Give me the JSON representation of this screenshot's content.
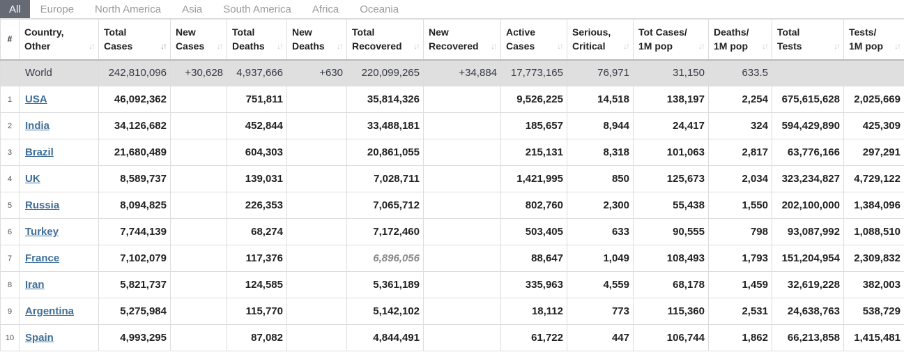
{
  "tabs": [
    "All",
    "Europe",
    "North America",
    "Asia",
    "South America",
    "Africa",
    "Oceania"
  ],
  "active_tab": "All",
  "header": {
    "num": "#",
    "country": [
      "Country,",
      "Other"
    ],
    "total_cases": [
      "Total",
      "Cases"
    ],
    "new_cases": [
      "New",
      "Cases"
    ],
    "total_deaths": [
      "Total",
      "Deaths"
    ],
    "new_deaths": [
      "New",
      "Deaths"
    ],
    "total_recovered": [
      "Total",
      "Recovered"
    ],
    "new_recovered": [
      "New",
      "Recovered"
    ],
    "active_cases": [
      "Active",
      "Cases"
    ],
    "serious": [
      "Serious,",
      "Critical"
    ],
    "cases_per_1m": [
      "Tot Cases/",
      "1M pop"
    ],
    "deaths_per_1m": [
      "Deaths/",
      "1M pop"
    ],
    "total_tests": [
      "Total",
      "Tests"
    ],
    "tests_per_1m": [
      "Tests/",
      "1M pop"
    ]
  },
  "world": {
    "country": "World",
    "total_cases": "242,810,096",
    "new_cases": "+30,628",
    "total_deaths": "4,937,666",
    "new_deaths": "+630",
    "total_recovered": "220,099,265",
    "new_recovered": "+34,884",
    "active_cases": "17,773,165",
    "serious": "76,971",
    "cases_per_1m": "31,150",
    "deaths_per_1m": "633.5",
    "total_tests": "",
    "tests_per_1m": ""
  },
  "rows": [
    {
      "idx": "1",
      "country": "USA",
      "total_cases": "46,092,362",
      "new_cases": "",
      "total_deaths": "751,811",
      "new_deaths": "",
      "total_recovered": "35,814,326",
      "new_recovered": "",
      "active_cases": "9,526,225",
      "serious": "14,518",
      "cases_per_1m": "138,197",
      "deaths_per_1m": "2,254",
      "total_tests": "675,615,628",
      "tests_per_1m": "2,025,669"
    },
    {
      "idx": "2",
      "country": "India",
      "total_cases": "34,126,682",
      "new_cases": "",
      "total_deaths": "452,844",
      "new_deaths": "",
      "total_recovered": "33,488,181",
      "new_recovered": "",
      "active_cases": "185,657",
      "serious": "8,944",
      "cases_per_1m": "24,417",
      "deaths_per_1m": "324",
      "total_tests": "594,429,890",
      "tests_per_1m": "425,309"
    },
    {
      "idx": "3",
      "country": "Brazil",
      "total_cases": "21,680,489",
      "new_cases": "",
      "total_deaths": "604,303",
      "new_deaths": "",
      "total_recovered": "20,861,055",
      "new_recovered": "",
      "active_cases": "215,131",
      "serious": "8,318",
      "cases_per_1m": "101,063",
      "deaths_per_1m": "2,817",
      "total_tests": "63,776,166",
      "tests_per_1m": "297,291"
    },
    {
      "idx": "4",
      "country": "UK",
      "total_cases": "8,589,737",
      "new_cases": "",
      "total_deaths": "139,031",
      "new_deaths": "",
      "total_recovered": "7,028,711",
      "new_recovered": "",
      "active_cases": "1,421,995",
      "serious": "850",
      "cases_per_1m": "125,673",
      "deaths_per_1m": "2,034",
      "total_tests": "323,234,827",
      "tests_per_1m": "4,729,122"
    },
    {
      "idx": "5",
      "country": "Russia",
      "total_cases": "8,094,825",
      "new_cases": "",
      "total_deaths": "226,353",
      "new_deaths": "",
      "total_recovered": "7,065,712",
      "new_recovered": "",
      "active_cases": "802,760",
      "serious": "2,300",
      "cases_per_1m": "55,438",
      "deaths_per_1m": "1,550",
      "total_tests": "202,100,000",
      "tests_per_1m": "1,384,096"
    },
    {
      "idx": "6",
      "country": "Turkey",
      "total_cases": "7,744,139",
      "new_cases": "",
      "total_deaths": "68,274",
      "new_deaths": "",
      "total_recovered": "7,172,460",
      "new_recovered": "",
      "active_cases": "503,405",
      "serious": "633",
      "cases_per_1m": "90,555",
      "deaths_per_1m": "798",
      "total_tests": "93,087,992",
      "tests_per_1m": "1,088,510"
    },
    {
      "idx": "7",
      "country": "France",
      "total_cases": "7,102,079",
      "new_cases": "",
      "total_deaths": "117,376",
      "new_deaths": "",
      "total_recovered": "6,896,056",
      "new_recovered": "",
      "active_cases": "88,647",
      "serious": "1,049",
      "cases_per_1m": "108,493",
      "deaths_per_1m": "1,793",
      "total_tests": "151,204,954",
      "tests_per_1m": "2,309,832"
    },
    {
      "idx": "8",
      "country": "Iran",
      "total_cases": "5,821,737",
      "new_cases": "",
      "total_deaths": "124,585",
      "new_deaths": "",
      "total_recovered": "5,361,189",
      "new_recovered": "",
      "active_cases": "335,963",
      "serious": "4,559",
      "cases_per_1m": "68,178",
      "deaths_per_1m": "1,459",
      "total_tests": "32,619,228",
      "tests_per_1m": "382,003"
    },
    {
      "idx": "9",
      "country": "Argentina",
      "total_cases": "5,275,984",
      "new_cases": "",
      "total_deaths": "115,770",
      "new_deaths": "",
      "total_recovered": "5,142,102",
      "new_recovered": "",
      "active_cases": "18,112",
      "serious": "773",
      "cases_per_1m": "115,360",
      "deaths_per_1m": "2,531",
      "total_tests": "24,638,763",
      "tests_per_1m": "538,729"
    },
    {
      "idx": "10",
      "country": "Spain",
      "total_cases": "4,993,295",
      "new_cases": "",
      "total_deaths": "87,082",
      "new_deaths": "",
      "total_recovered": "4,844,491",
      "new_recovered": "",
      "active_cases": "61,722",
      "serious": "447",
      "cases_per_1m": "106,744",
      "deaths_per_1m": "1,862",
      "total_tests": "66,213,858",
      "tests_per_1m": "1,415,481"
    }
  ],
  "styles": {
    "italic_cells": [
      {
        "row": 6,
        "col": "total_recovered"
      }
    ],
    "active_sort_column": "total_cases"
  }
}
